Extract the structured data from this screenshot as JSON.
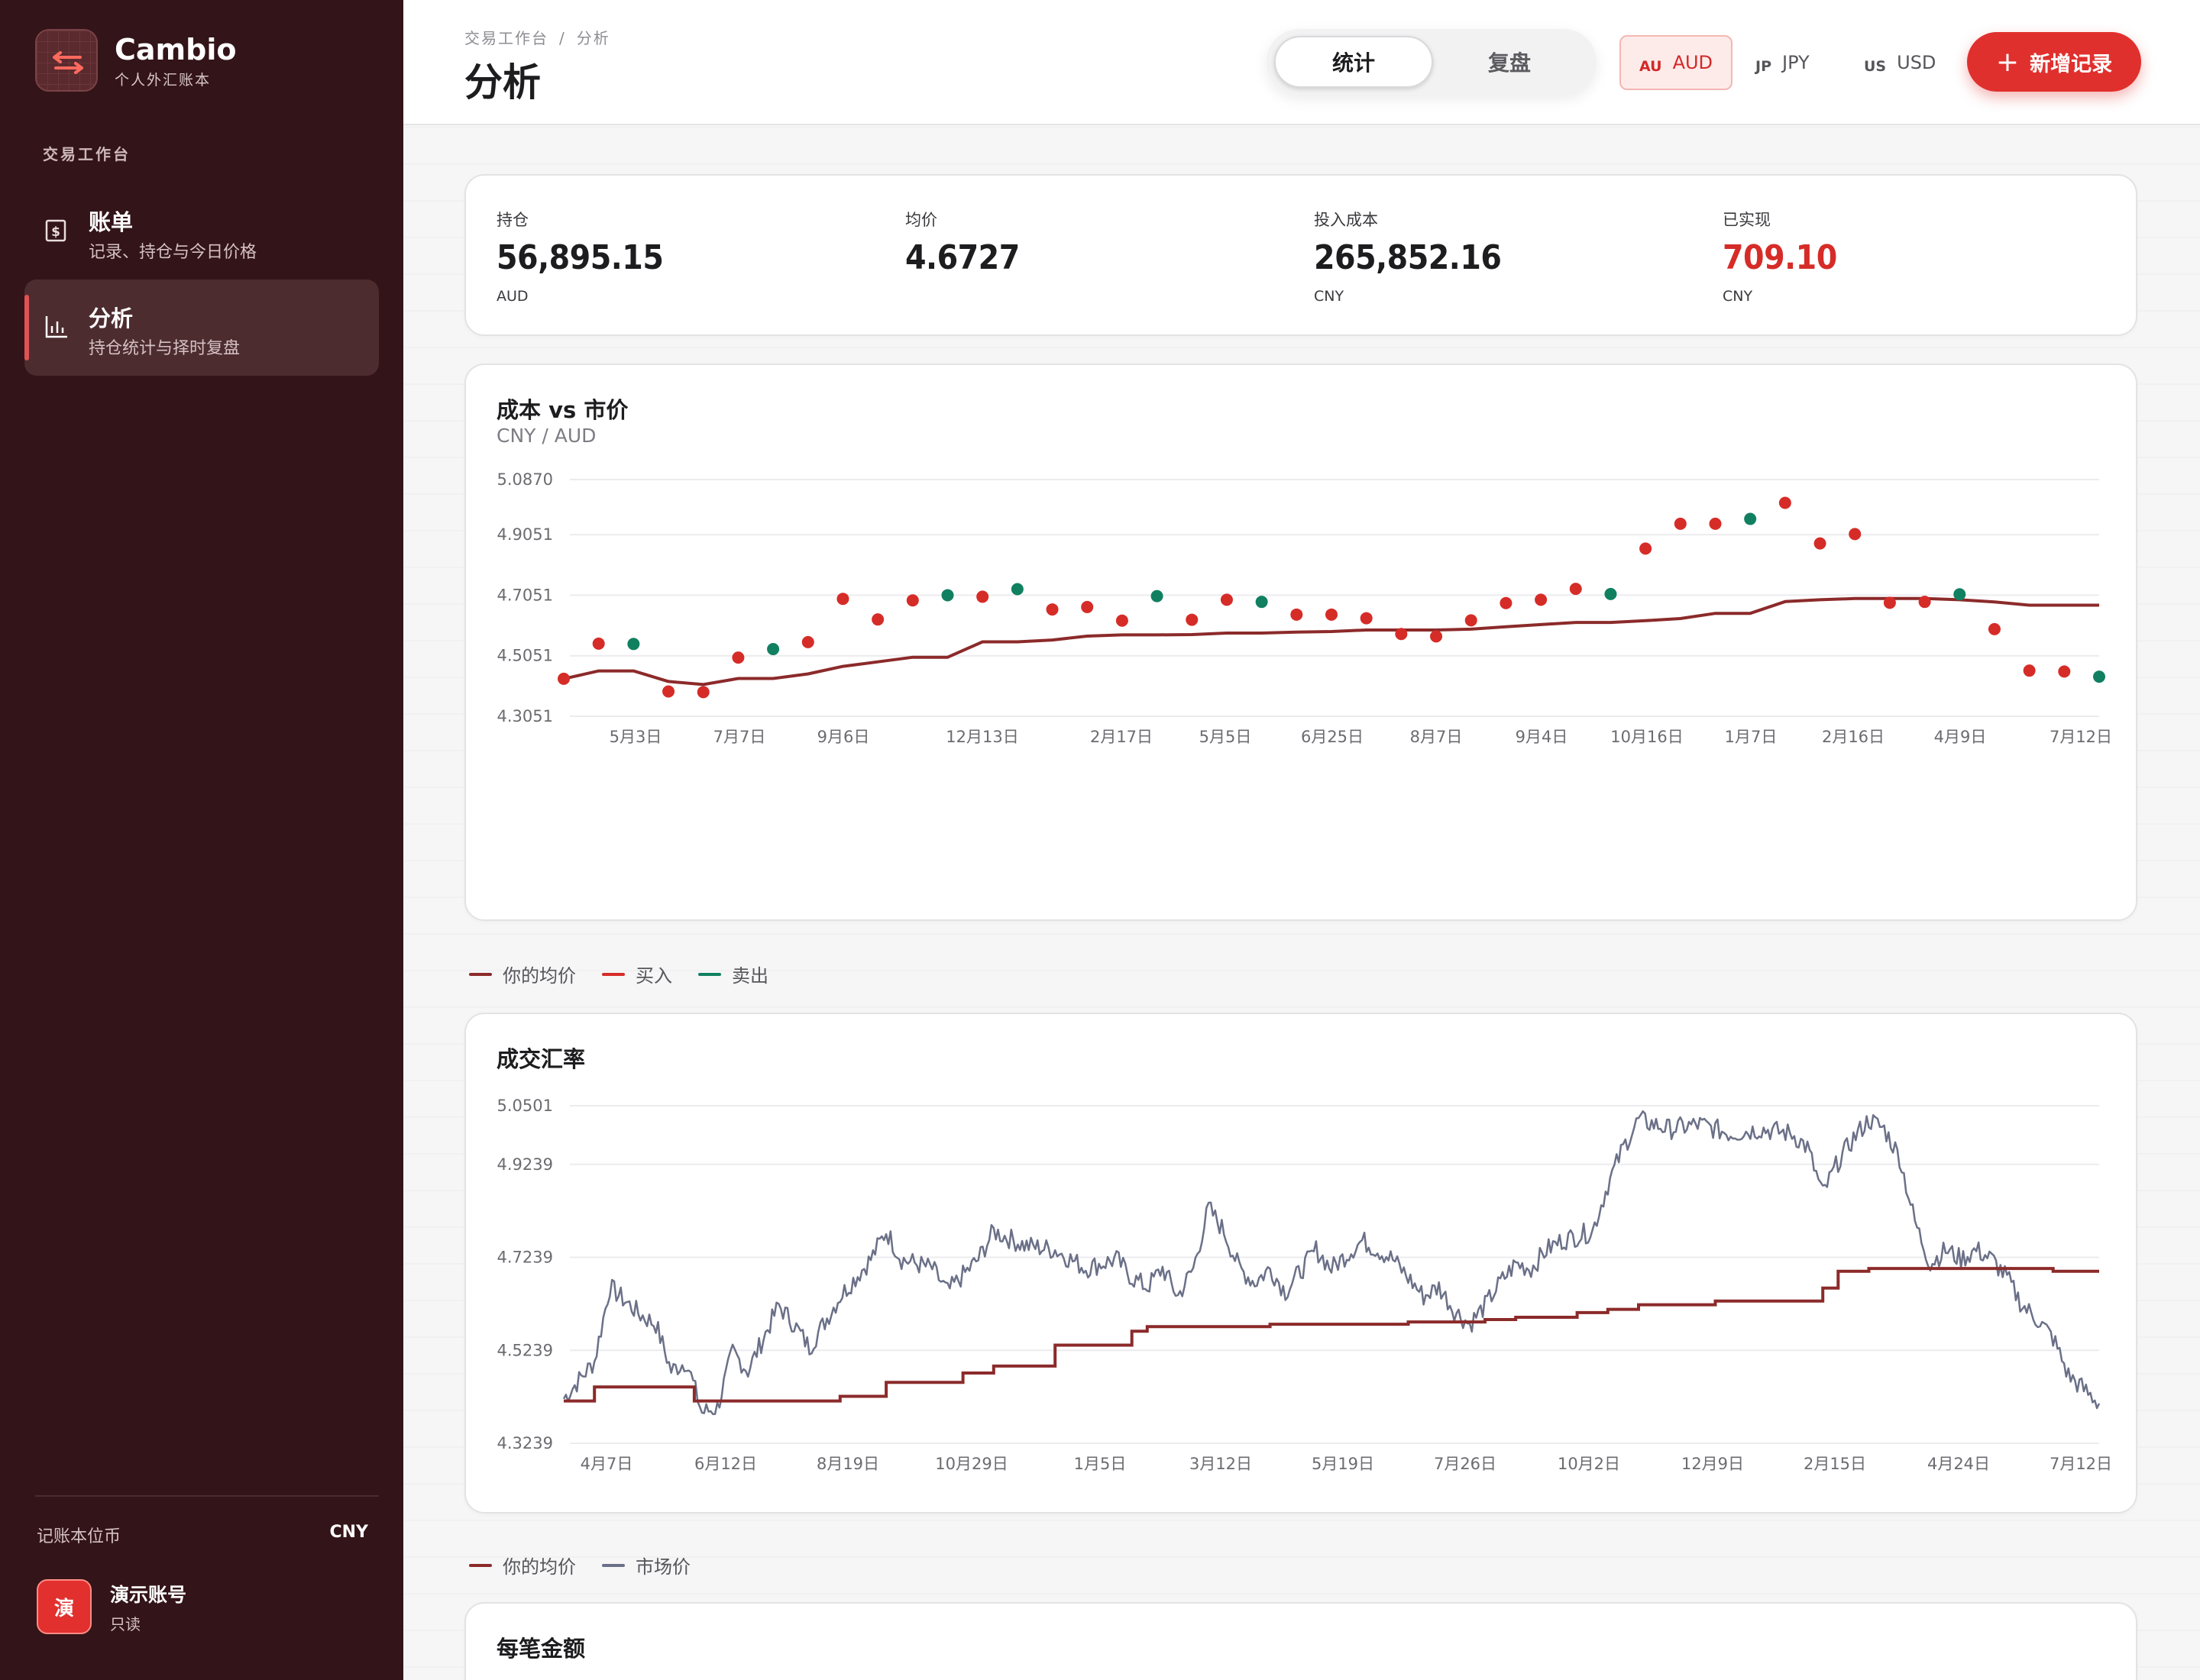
{
  "brand": {
    "name": "Cambio",
    "subtitle": "个人外汇账本"
  },
  "sidebar": {
    "section_label": "交易工作台",
    "items": [
      {
        "title": "账单",
        "subtitle": "记录、持仓与今日价格",
        "icon": "receipt-icon",
        "active": false
      },
      {
        "title": "分析",
        "subtitle": "持仓统计与择时复盘",
        "icon": "bar-chart-icon",
        "active": true
      }
    ],
    "base_currency_label": "记账本位币",
    "base_currency_value": "CNY",
    "account": {
      "avatar": "演",
      "name": "演示账号",
      "role": "只读"
    }
  },
  "header": {
    "breadcrumb": [
      "交易工作台",
      "分析"
    ],
    "breadcrumb_sep": "/",
    "title": "分析",
    "tabs": [
      {
        "label": "统计",
        "active": true
      },
      {
        "label": "复盘",
        "active": false
      }
    ],
    "currencies": [
      {
        "code": "AU",
        "name": "AUD",
        "active": true
      },
      {
        "code": "JP",
        "name": "JPY",
        "active": false
      },
      {
        "code": "US",
        "name": "USD",
        "active": false
      }
    ],
    "add_button": "新增记录",
    "accent": "#e0302d"
  },
  "stats": [
    {
      "label": "持仓",
      "value": "56,895.15",
      "unit": "AUD"
    },
    {
      "label": "均价",
      "value": "4.6727",
      "unit": ""
    },
    {
      "label": "投入成本",
      "value": "265,852.16",
      "unit": "CNY"
    },
    {
      "label": "已实现",
      "value": "709.10",
      "unit": "CNY",
      "color": "#d62c28"
    }
  ],
  "bottom_card_title": "每笔金额",
  "chart_data": [
    {
      "type": "scatter",
      "title": "成本 vs 市价",
      "subtitle": "CNY / AUD",
      "ylim": [
        4.3051,
        5.087
      ],
      "yticks": [
        "5.0870",
        "4.9051",
        "4.7051",
        "4.5051",
        "4.3051"
      ],
      "x_labels": [
        "5月3日",
        "7月7日",
        "9月6日",
        "12月13日",
        "2月17日",
        "5月5日",
        "6月25日",
        "8月7日",
        "9月4日",
        "10月16日",
        "1月7日",
        "2月16日",
        "4月9日",
        "7月12日"
      ],
      "legend": [
        "你的均价",
        "买入",
        "卖出"
      ],
      "colors": {
        "avg": "#8c2a2a",
        "buy": "#d62c28",
        "sell": "#118060"
      },
      "points": [
        {
          "i": 0,
          "y": 4.429,
          "side": "buy"
        },
        {
          "i": 1,
          "y": 4.545,
          "side": "buy"
        },
        {
          "i": 2,
          "y": 4.544,
          "side": "sell"
        },
        {
          "i": 3,
          "y": 4.387,
          "side": "buy"
        },
        {
          "i": 4,
          "y": 4.385,
          "side": "buy"
        },
        {
          "i": 5,
          "y": 4.499,
          "side": "buy"
        },
        {
          "i": 6,
          "y": 4.527,
          "side": "sell"
        },
        {
          "i": 7,
          "y": 4.55,
          "side": "buy"
        },
        {
          "i": 8,
          "y": 4.693,
          "side": "buy"
        },
        {
          "i": 9,
          "y": 4.625,
          "side": "buy"
        },
        {
          "i": 10,
          "y": 4.688,
          "side": "buy"
        },
        {
          "i": 11,
          "y": 4.705,
          "side": "sell"
        },
        {
          "i": 12,
          "y": 4.7,
          "side": "buy"
        },
        {
          "i": 13,
          "y": 4.725,
          "side": "sell"
        },
        {
          "i": 14,
          "y": 4.658,
          "side": "buy"
        },
        {
          "i": 15,
          "y": 4.666,
          "side": "buy"
        },
        {
          "i": 16,
          "y": 4.621,
          "side": "buy"
        },
        {
          "i": 17,
          "y": 4.702,
          "side": "sell"
        },
        {
          "i": 18,
          "y": 4.624,
          "side": "buy"
        },
        {
          "i": 19,
          "y": 4.69,
          "side": "buy"
        },
        {
          "i": 20,
          "y": 4.683,
          "side": "sell"
        },
        {
          "i": 21,
          "y": 4.641,
          "side": "buy"
        },
        {
          "i": 22,
          "y": 4.641,
          "side": "buy"
        },
        {
          "i": 23,
          "y": 4.629,
          "side": "buy"
        },
        {
          "i": 24,
          "y": 4.577,
          "side": "buy"
        },
        {
          "i": 25,
          "y": 4.569,
          "side": "buy"
        },
        {
          "i": 26,
          "y": 4.622,
          "side": "buy"
        },
        {
          "i": 27,
          "y": 4.679,
          "side": "buy"
        },
        {
          "i": 28,
          "y": 4.69,
          "side": "buy"
        },
        {
          "i": 29,
          "y": 4.726,
          "side": "buy"
        },
        {
          "i": 30,
          "y": 4.709,
          "side": "sell"
        },
        {
          "i": 31,
          "y": 4.859,
          "side": "buy"
        },
        {
          "i": 32,
          "y": 4.941,
          "side": "buy"
        },
        {
          "i": 33,
          "y": 4.941,
          "side": "buy"
        },
        {
          "i": 34,
          "y": 4.957,
          "side": "sell"
        },
        {
          "i": 35,
          "y": 5.01,
          "side": "buy"
        },
        {
          "i": 36,
          "y": 4.876,
          "side": "buy"
        },
        {
          "i": 37,
          "y": 4.907,
          "side": "buy"
        },
        {
          "i": 38,
          "y": 4.68,
          "side": "buy"
        },
        {
          "i": 39,
          "y": 4.683,
          "side": "buy"
        },
        {
          "i": 40,
          "y": 4.708,
          "side": "sell"
        },
        {
          "i": 41,
          "y": 4.593,
          "side": "buy"
        },
        {
          "i": 42,
          "y": 4.456,
          "side": "buy"
        },
        {
          "i": 43,
          "y": 4.453,
          "side": "buy"
        },
        {
          "i": 44,
          "y": 4.436,
          "side": "sell"
        }
      ],
      "avg_line": [
        [
          0,
          4.429
        ],
        [
          1,
          4.455
        ],
        [
          2,
          4.455
        ],
        [
          3,
          4.42
        ],
        [
          4,
          4.41
        ],
        [
          5,
          4.43
        ],
        [
          6,
          4.43
        ],
        [
          7,
          4.445
        ],
        [
          8,
          4.47
        ],
        [
          9,
          4.485
        ],
        [
          10,
          4.5
        ],
        [
          11,
          4.5
        ],
        [
          12,
          4.551
        ],
        [
          13,
          4.551
        ],
        [
          14,
          4.557
        ],
        [
          15,
          4.57
        ],
        [
          16,
          4.574
        ],
        [
          17,
          4.574
        ],
        [
          18,
          4.575
        ],
        [
          19,
          4.58
        ],
        [
          20,
          4.58
        ],
        [
          21,
          4.583
        ],
        [
          22,
          4.585
        ],
        [
          23,
          4.59
        ],
        [
          24,
          4.59
        ],
        [
          25,
          4.59
        ],
        [
          26,
          4.593
        ],
        [
          27,
          4.601
        ],
        [
          28,
          4.608
        ],
        [
          29,
          4.615
        ],
        [
          30,
          4.615
        ],
        [
          31,
          4.621
        ],
        [
          32,
          4.628
        ],
        [
          33,
          4.645
        ],
        [
          34,
          4.645
        ],
        [
          35,
          4.684
        ],
        [
          36,
          4.69
        ],
        [
          37,
          4.694
        ],
        [
          38,
          4.694
        ],
        [
          39,
          4.694
        ],
        [
          40,
          4.69
        ],
        [
          41,
          4.683
        ],
        [
          42,
          4.672
        ],
        [
          43,
          4.672
        ],
        [
          44,
          4.672
        ]
      ]
    },
    {
      "type": "line",
      "title": "成交汇率",
      "ylim": [
        4.3239,
        5.0501
      ],
      "yticks": [
        "5.0501",
        "4.9239",
        "4.7239",
        "4.5239",
        "4.3239"
      ],
      "x_labels": [
        "4月7日",
        "6月12日",
        "8月19日",
        "10月29日",
        "1月5日",
        "3月12日",
        "5月19日",
        "7月26日",
        "10月2日",
        "12月9日",
        "2月15日",
        "4月24日",
        "7月12日"
      ],
      "legend": [
        "你的均价",
        "市场价"
      ],
      "colors": {
        "avg": "#8c2a2a",
        "market": "#6b7088"
      },
      "market_anchors": [
        [
          0,
          4.42
        ],
        [
          0.02,
          4.5
        ],
        [
          0.03,
          4.66
        ],
        [
          0.05,
          4.6
        ],
        [
          0.06,
          4.58
        ],
        [
          0.07,
          4.48
        ],
        [
          0.08,
          4.5
        ],
        [
          0.09,
          4.39
        ],
        [
          0.1,
          4.4
        ],
        [
          0.11,
          4.52
        ],
        [
          0.12,
          4.48
        ],
        [
          0.14,
          4.62
        ],
        [
          0.15,
          4.58
        ],
        [
          0.16,
          4.53
        ],
        [
          0.18,
          4.64
        ],
        [
          0.2,
          4.72
        ],
        [
          0.21,
          4.78
        ],
        [
          0.22,
          4.72
        ],
        [
          0.24,
          4.7
        ],
        [
          0.25,
          4.65
        ],
        [
          0.27,
          4.72
        ],
        [
          0.28,
          4.78
        ],
        [
          0.3,
          4.75
        ],
        [
          0.32,
          4.74
        ],
        [
          0.34,
          4.7
        ],
        [
          0.36,
          4.72
        ],
        [
          0.37,
          4.68
        ],
        [
          0.38,
          4.66
        ],
        [
          0.39,
          4.7
        ],
        [
          0.4,
          4.64
        ],
        [
          0.41,
          4.7
        ],
        [
          0.42,
          4.83
        ],
        [
          0.43,
          4.78
        ],
        [
          0.44,
          4.7
        ],
        [
          0.45,
          4.67
        ],
        [
          0.46,
          4.7
        ],
        [
          0.47,
          4.65
        ],
        [
          0.49,
          4.74
        ],
        [
          0.5,
          4.7
        ],
        [
          0.52,
          4.76
        ],
        [
          0.54,
          4.72
        ],
        [
          0.55,
          4.68
        ],
        [
          0.56,
          4.64
        ],
        [
          0.57,
          4.66
        ],
        [
          0.58,
          4.61
        ],
        [
          0.59,
          4.58
        ],
        [
          0.6,
          4.62
        ],
        [
          0.61,
          4.67
        ],
        [
          0.62,
          4.71
        ],
        [
          0.63,
          4.7
        ],
        [
          0.64,
          4.74
        ],
        [
          0.65,
          4.76
        ],
        [
          0.67,
          4.78
        ],
        [
          0.68,
          4.88
        ],
        [
          0.69,
          4.96
        ],
        [
          0.7,
          5.02
        ],
        [
          0.72,
          5.0
        ],
        [
          0.74,
          5.01
        ],
        [
          0.76,
          4.99
        ],
        [
          0.78,
          5.0
        ],
        [
          0.8,
          4.99
        ],
        [
          0.81,
          4.96
        ],
        [
          0.82,
          4.86
        ],
        [
          0.83,
          4.93
        ],
        [
          0.84,
          4.98
        ],
        [
          0.85,
          5.02
        ],
        [
          0.86,
          5.0
        ],
        [
          0.87,
          4.94
        ],
        [
          0.88,
          4.8
        ],
        [
          0.89,
          4.71
        ],
        [
          0.9,
          4.74
        ],
        [
          0.91,
          4.72
        ],
        [
          0.92,
          4.74
        ],
        [
          0.93,
          4.72
        ],
        [
          0.94,
          4.68
        ],
        [
          0.95,
          4.62
        ],
        [
          0.96,
          4.59
        ],
        [
          0.97,
          4.55
        ],
        [
          0.98,
          4.47
        ],
        [
          0.99,
          4.44
        ],
        [
          1.0,
          4.41
        ]
      ],
      "avg_steps": [
        [
          0,
          4.415
        ],
        [
          0.02,
          4.445
        ],
        [
          0.085,
          4.415
        ],
        [
          0.13,
          4.415
        ],
        [
          0.18,
          4.425
        ],
        [
          0.21,
          4.455
        ],
        [
          0.26,
          4.475
        ],
        [
          0.28,
          4.49
        ],
        [
          0.32,
          4.535
        ],
        [
          0.37,
          4.565
        ],
        [
          0.38,
          4.575
        ],
        [
          0.46,
          4.58
        ],
        [
          0.55,
          4.585
        ],
        [
          0.6,
          4.59
        ],
        [
          0.62,
          4.595
        ],
        [
          0.66,
          4.605
        ],
        [
          0.68,
          4.612
        ],
        [
          0.7,
          4.622
        ],
        [
          0.75,
          4.63
        ],
        [
          0.82,
          4.658
        ],
        [
          0.83,
          4.694
        ],
        [
          0.85,
          4.7
        ],
        [
          0.97,
          4.694
        ],
        [
          1.0,
          4.694
        ]
      ]
    }
  ]
}
